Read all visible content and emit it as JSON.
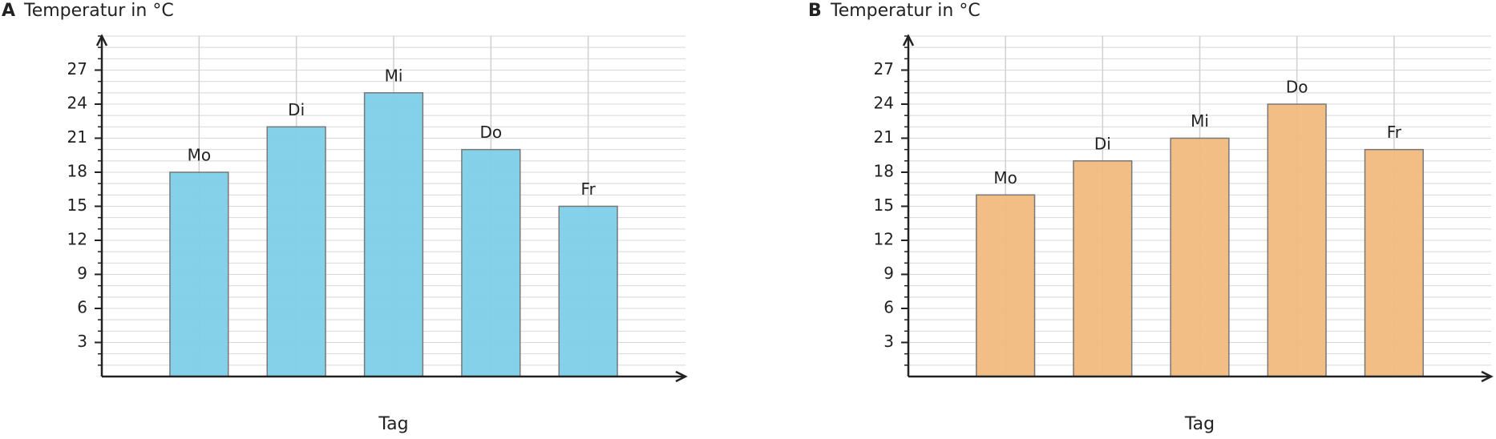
{
  "chart_data": [
    {
      "type": "bar",
      "panel": "A",
      "title": "Temperatur in °C",
      "xlabel": "Tag",
      "categories": [
        "Mo",
        "Di",
        "Mi",
        "Do",
        "Fr"
      ],
      "values": [
        18,
        22,
        25,
        20,
        15
      ],
      "color": "#7ecfe8",
      "ylim": [
        0,
        30
      ],
      "yticks": [
        3,
        6,
        9,
        12,
        15,
        18,
        21,
        24,
        27
      ],
      "yminorticks": [
        1,
        2,
        3,
        4,
        5,
        6,
        7,
        8,
        9,
        10,
        11,
        12,
        13,
        14,
        15,
        16,
        17,
        18,
        19,
        20,
        21,
        22,
        23,
        24,
        25,
        26,
        27,
        28,
        29,
        30
      ],
      "grid": true
    },
    {
      "type": "bar",
      "panel": "B",
      "title": "Temperatur in °C",
      "xlabel": "Tag",
      "categories": [
        "Mo",
        "Di",
        "Mi",
        "Do",
        "Fr"
      ],
      "values": [
        16,
        19,
        21,
        24,
        20
      ],
      "color": "#f2bb80",
      "ylim": [
        0,
        30
      ],
      "yticks": [
        3,
        6,
        9,
        12,
        15,
        18,
        21,
        24,
        27
      ],
      "yminorticks": [
        1,
        2,
        3,
        4,
        5,
        6,
        7,
        8,
        9,
        10,
        11,
        12,
        13,
        14,
        15,
        16,
        17,
        18,
        19,
        20,
        21,
        22,
        23,
        24,
        25,
        26,
        27,
        28,
        29,
        30
      ],
      "grid": true
    }
  ]
}
